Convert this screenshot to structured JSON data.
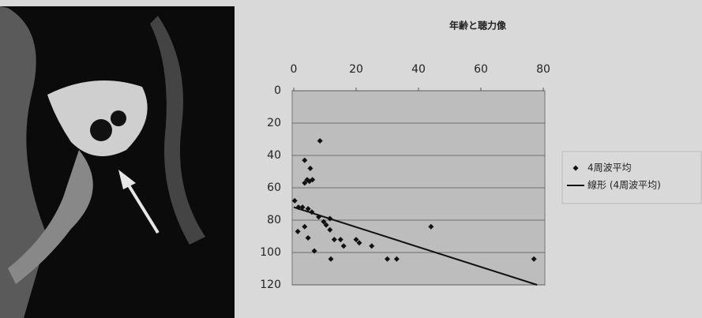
{
  "chart_data": {
    "type": "scatter",
    "title": "年齢と聴力像",
    "xlim": [
      0,
      80
    ],
    "xticks": [
      0,
      20,
      40,
      60,
      80
    ],
    "x_axis_position": "top",
    "ylim": [
      0,
      120
    ],
    "yticks": [
      0,
      20,
      40,
      60,
      80,
      100,
      120
    ],
    "y_inverted": true,
    "grid": true,
    "legend_position": "right",
    "series": [
      {
        "name": "4周波平均",
        "color": "#111111",
        "marker": "diamond",
        "x": [
          8.4,
          3.5,
          5.3,
          3.5,
          5,
          4.3,
          6,
          0.3,
          1.5,
          2.8,
          4.6,
          5.8,
          1.3,
          3.5,
          4.6,
          6.6,
          8,
          9.6,
          10.4,
          11.6,
          11.6,
          11.9,
          13,
          15,
          16,
          20,
          21,
          25,
          30,
          33,
          44,
          77
        ],
        "values": [
          31,
          43,
          48,
          57,
          56,
          55,
          55,
          68,
          72,
          72,
          73,
          75,
          87,
          84,
          91,
          99,
          78,
          81,
          83,
          79,
          86,
          104,
          92,
          92,
          96,
          92,
          94,
          96,
          104,
          104,
          84,
          104
        ]
      },
      {
        "name": "線形 (4周波平均)",
        "color": "#111111",
        "type": "line",
        "x": [
          0,
          78
        ],
        "values": [
          72,
          120
        ]
      }
    ]
  }
}
